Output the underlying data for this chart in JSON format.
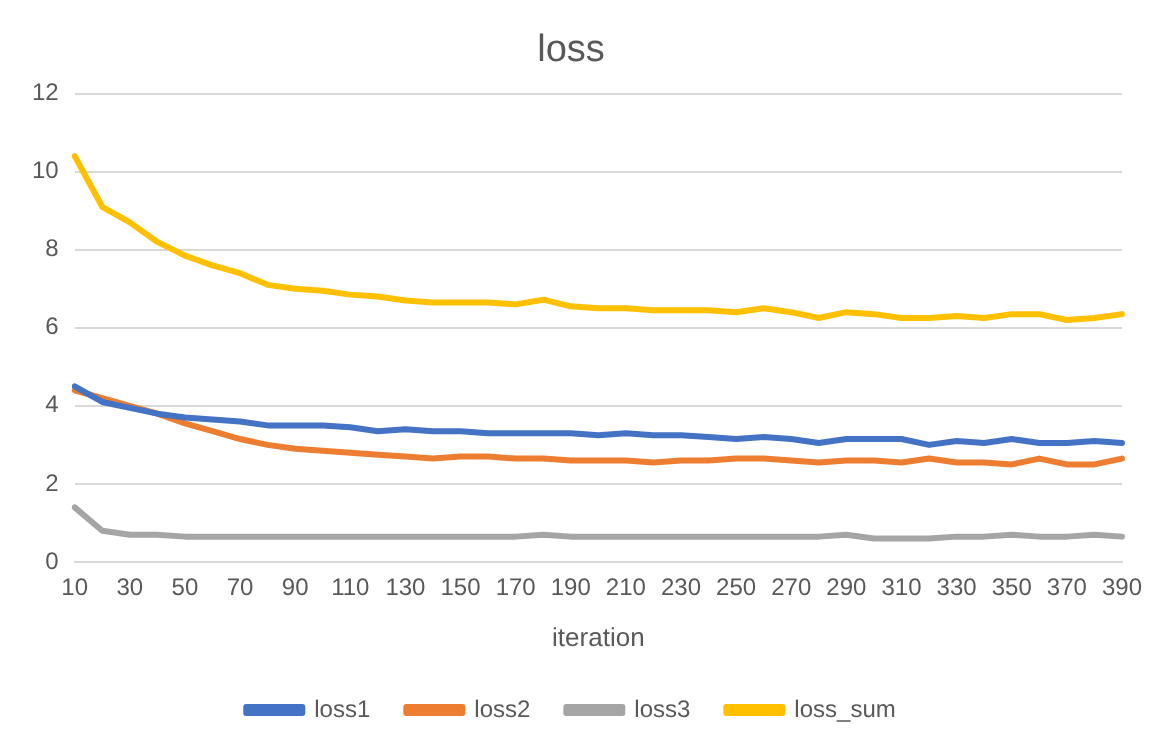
{
  "chart_data": {
    "type": "line",
    "title": "loss",
    "xlabel": "iteration",
    "categories": [
      "10",
      null,
      "30",
      null,
      "50",
      null,
      "70",
      null,
      "90",
      null,
      "110",
      null,
      "130",
      null,
      "150",
      null,
      "170",
      null,
      "190",
      null,
      "210",
      null,
      "230",
      null,
      "250",
      null,
      "270",
      null,
      "290",
      null,
      "310",
      null,
      "330",
      null,
      "350",
      null,
      "370",
      null,
      "390"
    ],
    "series": [
      {
        "name": "loss1",
        "color": "#4472c4",
        "values": [
          4.5,
          4.1,
          3.95,
          3.8,
          3.7,
          3.65,
          3.6,
          3.5,
          3.5,
          3.5,
          3.45,
          3.35,
          3.4,
          3.35,
          3.35,
          3.3,
          3.3,
          3.3,
          3.3,
          3.25,
          3.3,
          3.25,
          3.25,
          3.2,
          3.15,
          3.2,
          3.15,
          3.05,
          3.15,
          3.15,
          3.15,
          3.0,
          3.1,
          3.05,
          3.15,
          3.05,
          3.05,
          3.1,
          3.05
        ]
      },
      {
        "name": "loss2",
        "color": "#ed7d31",
        "values": [
          4.4,
          4.2,
          4.0,
          3.8,
          3.55,
          3.35,
          3.15,
          3.0,
          2.9,
          2.85,
          2.8,
          2.75,
          2.7,
          2.65,
          2.7,
          2.7,
          2.65,
          2.65,
          2.6,
          2.6,
          2.6,
          2.55,
          2.6,
          2.6,
          2.65,
          2.65,
          2.6,
          2.55,
          2.6,
          2.6,
          2.55,
          2.65,
          2.55,
          2.55,
          2.5,
          2.65,
          2.5,
          2.5,
          2.65
        ]
      },
      {
        "name": "loss3",
        "color": "#a5a5a5",
        "values": [
          1.4,
          0.8,
          0.7,
          0.7,
          0.65,
          0.65,
          0.65,
          0.65,
          0.65,
          0.65,
          0.65,
          0.65,
          0.65,
          0.65,
          0.65,
          0.65,
          0.65,
          0.7,
          0.65,
          0.65,
          0.65,
          0.65,
          0.65,
          0.65,
          0.65,
          0.65,
          0.65,
          0.65,
          0.7,
          0.6,
          0.6,
          0.6,
          0.65,
          0.65,
          0.7,
          0.65,
          0.65,
          0.7,
          0.65
        ]
      },
      {
        "name": "loss_sum",
        "color": "#ffc000",
        "values": [
          10.4,
          9.1,
          8.7,
          8.2,
          7.85,
          7.6,
          7.4,
          7.1,
          7.0,
          6.95,
          6.85,
          6.8,
          6.7,
          6.65,
          6.65,
          6.65,
          6.6,
          6.72,
          6.55,
          6.5,
          6.5,
          6.45,
          6.45,
          6.45,
          6.4,
          6.5,
          6.4,
          6.25,
          6.4,
          6.35,
          6.25,
          6.25,
          6.3,
          6.25,
          6.35,
          6.35,
          6.2,
          6.25,
          6.35
        ]
      }
    ],
    "ylim": [
      0,
      12
    ],
    "yticks": [
      0,
      2,
      4,
      6,
      8,
      10,
      12
    ],
    "grid": "y",
    "legend": "bottom",
    "marker": "none",
    "line_style": "solid"
  }
}
